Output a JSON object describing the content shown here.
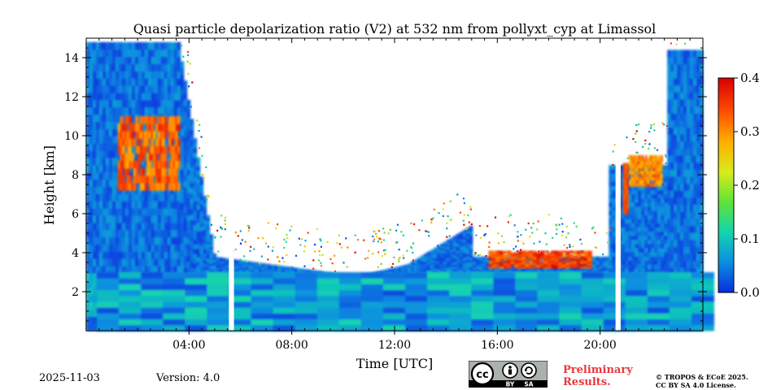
{
  "chart_data": {
    "type": "heatmap",
    "title": "Quasi particle depolarization ratio (V2) at 532 nm from pollyxt_cyp at Limassol",
    "xlabel": "Time [UTC]",
    "ylabel": "Height [km]",
    "xlim_hours": [
      0,
      24
    ],
    "ylim_km": [
      0,
      15
    ],
    "x_ticks": [
      {
        "hour": 4,
        "label": "04:00"
      },
      {
        "hour": 8,
        "label": "08:00"
      },
      {
        "hour": 12,
        "label": "12:00"
      },
      {
        "hour": 16,
        "label": "16:00"
      },
      {
        "hour": 20,
        "label": "20:00"
      }
    ],
    "y_ticks": [
      {
        "value": 2,
        "label": "2"
      },
      {
        "value": 4,
        "label": "4"
      },
      {
        "value": 6,
        "label": "6"
      },
      {
        "value": 8,
        "label": "8"
      },
      {
        "value": 10,
        "label": "10"
      },
      {
        "value": 12,
        "label": "12"
      },
      {
        "value": 14,
        "label": "14"
      }
    ],
    "colorbar": {
      "min": 0.0,
      "max": 0.4,
      "ticks": [
        {
          "value": 0.0,
          "label": "0.0"
        },
        {
          "value": 0.1,
          "label": "0.1"
        },
        {
          "value": 0.2,
          "label": "0.2"
        },
        {
          "value": 0.3,
          "label": "0.3"
        },
        {
          "value": 0.4,
          "label": "0.4"
        }
      ],
      "colormap": [
        "#0a2be0",
        "#0a8fe0",
        "#13d3b0",
        "#5fe23a",
        "#d6ec1c",
        "#ffb000",
        "#ff4a00",
        "#d80000"
      ]
    },
    "data_gaps_hours": [
      [
        5.55,
        5.75
      ],
      [
        20.6,
        20.8
      ]
    ],
    "features": [
      {
        "name": "near-surface aerosol layer",
        "start_hour": 0,
        "end_hour": 24,
        "base_km": 0,
        "top_km": 3.0,
        "value": 0.07
      },
      {
        "name": "cirrus cloud",
        "start_hour": 1.2,
        "end_hour": 3.6,
        "base_km": 7.2,
        "top_km": 11.0,
        "value": 0.33
      },
      {
        "name": "cloud layer",
        "start_hour": 15.6,
        "end_hour": 19.6,
        "base_km": 3.2,
        "top_km": 4.1,
        "value": 0.36
      },
      {
        "name": "cirrus cloud",
        "start_hour": 21.1,
        "end_hour": 22.4,
        "base_km": 7.4,
        "top_km": 9.0,
        "value": 0.31
      },
      {
        "name": "cirrus column",
        "start_hour": 20.9,
        "end_hour": 21.1,
        "base_km": 6.0,
        "top_km": 8.6,
        "value": 0.35
      }
    ]
  },
  "footer": {
    "date": "2025-11-03",
    "version": "Version: 4.0",
    "cc_by": "BY",
    "cc_sa": "SA",
    "preliminary_line1": "Preliminary",
    "preliminary_line2": "Results.",
    "license_line1": "© TROPOS & ECoE 2025.",
    "license_line2": "CC BY SA 4.0 License."
  }
}
